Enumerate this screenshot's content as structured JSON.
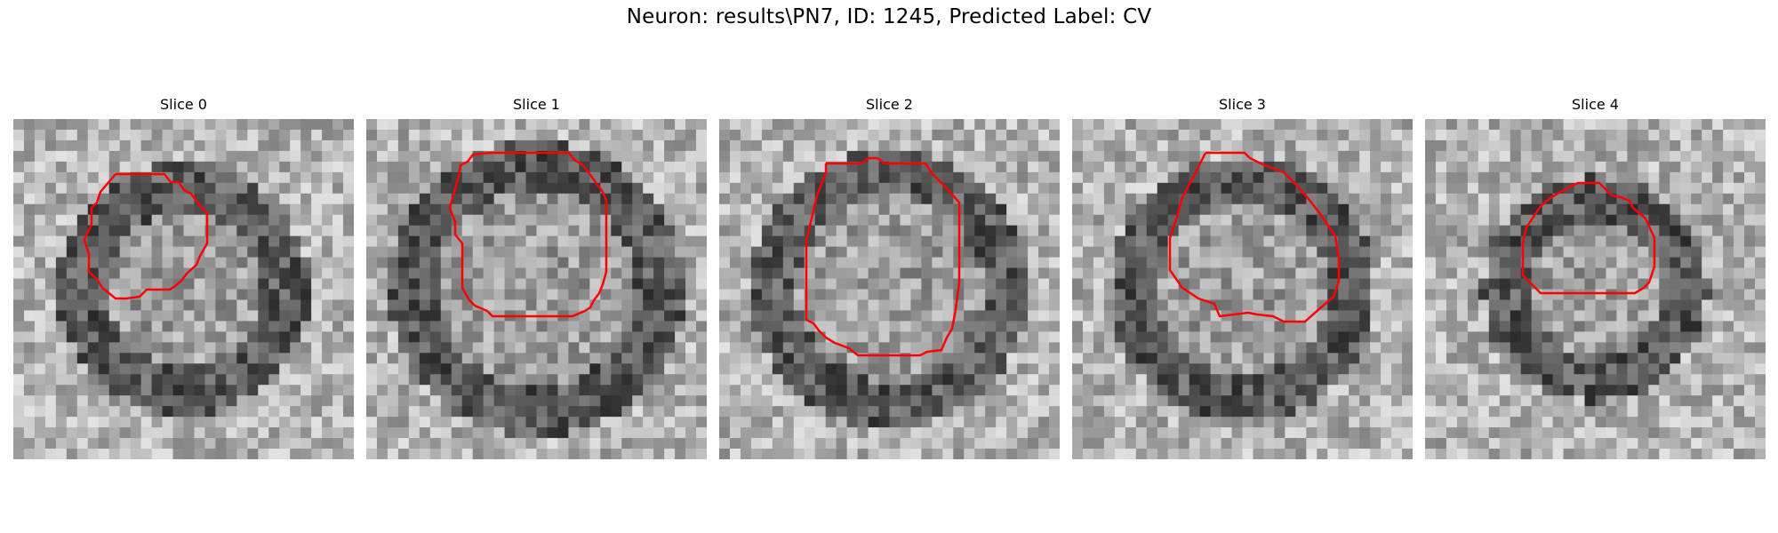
{
  "figure": {
    "title": "Neuron: results\\PN7, ID: 1245, Predicted Label: CV"
  },
  "colors": {
    "contour": "#ff0000",
    "background": "#ffffff",
    "colormap": "grayscale"
  },
  "slices": [
    {
      "title": "Slice 0"
    },
    {
      "title": "Slice 1"
    },
    {
      "title": "Slice 2"
    },
    {
      "title": "Slice 3"
    },
    {
      "title": "Slice 4"
    }
  ]
}
